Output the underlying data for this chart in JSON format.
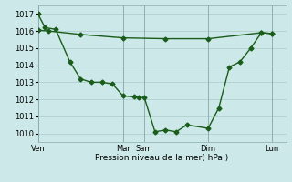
{
  "background_color": "#cce8e8",
  "grid_color": "#aacccc",
  "line_color": "#1a5c1a",
  "xlabel": "Pression niveau de la mer( hPa )",
  "ylim": [
    1009.5,
    1017.5
  ],
  "yticks": [
    1010,
    1011,
    1012,
    1013,
    1014,
    1015,
    1016,
    1017
  ],
  "xlim": [
    0,
    280
  ],
  "xtick_positions": [
    0,
    96,
    120,
    192,
    264
  ],
  "xtick_labels": [
    "Ven",
    "Mar",
    "Sam",
    "Dim",
    "Lun"
  ],
  "line1_x": [
    0,
    8,
    20,
    36,
    48,
    60,
    72,
    84,
    96,
    108,
    114,
    120,
    132,
    144,
    156,
    168,
    192,
    204,
    216,
    228,
    240,
    252,
    264
  ],
  "line1_y": [
    1017.0,
    1016.2,
    1016.1,
    1014.2,
    1013.2,
    1013.0,
    1013.0,
    1012.9,
    1012.2,
    1012.15,
    1012.1,
    1012.1,
    1010.1,
    1010.2,
    1010.1,
    1010.5,
    1010.3,
    1011.5,
    1013.9,
    1014.2,
    1015.0,
    1015.9,
    1015.85
  ],
  "line2_x": [
    0,
    12,
    48,
    96,
    144,
    192,
    252,
    264
  ],
  "line2_y": [
    1016.05,
    1016.0,
    1015.8,
    1015.6,
    1015.55,
    1015.55,
    1015.9,
    1015.85
  ],
  "marker": "D",
  "markersize": 2.5,
  "linewidth": 1.0,
  "ytick_fontsize": 6,
  "xtick_fontsize": 6,
  "xlabel_fontsize": 6.5
}
